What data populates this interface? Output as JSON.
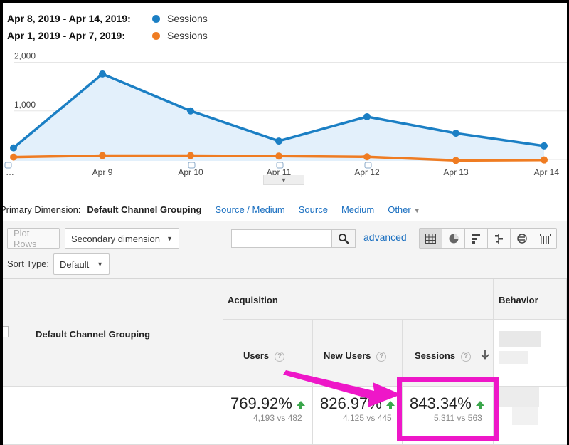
{
  "legend": [
    {
      "range": "Apr 8, 2019 - Apr 14, 2019:",
      "series": "Sessions",
      "color": "#1b7fc4"
    },
    {
      "range": "Apr 1, 2019 - Apr 7, 2019:",
      "series": "Sessions",
      "color": "#ef7c22"
    }
  ],
  "chart_data": {
    "type": "line",
    "x": [
      "…",
      "Apr 9",
      "Apr 10",
      "Apr 11",
      "Apr 12",
      "Apr 13",
      "Apr 14"
    ],
    "y_ticks": [
      "2,000",
      "1,000"
    ],
    "ylim": [
      0,
      2400
    ],
    "series": [
      {
        "name": "Apr 8, 2019 - Apr 14, 2019",
        "color": "#1b7fc4",
        "values": [
          240,
          1760,
          1000,
          380,
          880,
          540,
          280
        ],
        "area": true
      },
      {
        "name": "Apr 1, 2019 - Apr 7, 2019",
        "color": "#ef7c22",
        "values": [
          50,
          80,
          80,
          70,
          55,
          -20,
          -10
        ]
      }
    ],
    "grid": true
  },
  "dimension_bar": {
    "label": "Primary Dimension:",
    "current": "Default Channel Grouping",
    "links": [
      "Source / Medium",
      "Source",
      "Medium",
      "Other"
    ]
  },
  "toolbar": {
    "plot_rows": "Plot Rows",
    "secondary_dimension": "Secondary dimension",
    "search_placeholder": "",
    "advanced": "advanced",
    "sort_label": "Sort Type:",
    "sort_value": "Default",
    "view_icons": [
      "grid-view-icon",
      "pie-view-icon",
      "bar-view-icon",
      "comparison-view-icon",
      "term-cloud-icon",
      "pivot-view-icon"
    ]
  },
  "table": {
    "dimension_header": "Default Channel Grouping",
    "group_acquisition": "Acquisition",
    "group_behavior": "Behavior",
    "columns": [
      {
        "label": "Users",
        "pct": "769.92%",
        "vs": "4,193 vs 482"
      },
      {
        "label": "New Users",
        "pct": "826.97%",
        "vs": "4,125 vs 445"
      },
      {
        "label": "Sessions",
        "pct": "843.34%",
        "vs": "5,311 vs 563"
      }
    ],
    "help_glyph": "?"
  },
  "annotation": {
    "highlight_color": "#ee17c8"
  }
}
